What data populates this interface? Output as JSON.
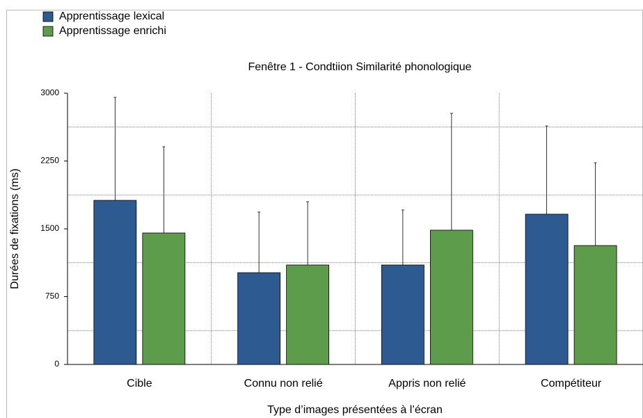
{
  "chart_data": {
    "type": "bar",
    "title": "Fenêtre 1 - Condtiion Similarité phonologique",
    "x_label": "Type d’images présentées à l’écran",
    "y_label": "Durées de fixations (ms)",
    "categories": [
      "Cible",
      "Connu non relié",
      "Appris non relié",
      "Compétiteur"
    ],
    "series": [
      {
        "name": "Apprentissage lexical",
        "color": "#2e5a92",
        "values": [
          1815,
          1015,
          1100,
          1662
        ],
        "errors": [
          1139,
          670,
          608,
          976
        ]
      },
      {
        "name": "Apprentissage enrichi",
        "color": "#5c9c4a",
        "values": [
          1454,
          1100,
          1485,
          1315
        ],
        "errors": [
          954,
          700,
          1292,
          916
        ]
      }
    ],
    "ylim": [
      0,
      3000
    ],
    "yticks": [
      0,
      750,
      1500,
      2250,
      3000
    ],
    "ygrid": [
      375,
      1125,
      1875,
      2625
    ],
    "xgrid": true,
    "legend": "top-left"
  }
}
